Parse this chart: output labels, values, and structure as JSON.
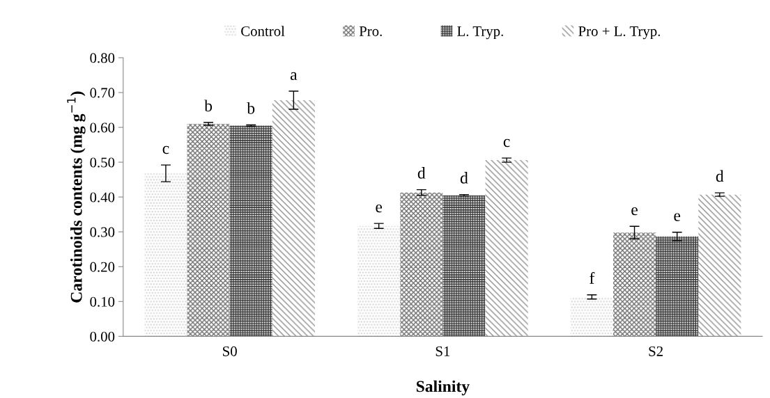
{
  "chart_data": {
    "type": "bar",
    "xlabel": "Salinity",
    "ylabel": "Carotinoids contents (mg g$^{−1}$)",
    "categories": [
      "S0",
      "S1",
      "S2"
    ],
    "series": [
      {
        "name": "Control",
        "color": "#d0d0d0",
        "values": [
          0.468,
          0.317,
          0.113
        ],
        "errors": [
          0.024,
          0.007,
          0.006
        ]
      },
      {
        "name": "Pro.",
        "color": "#707070",
        "values": [
          0.61,
          0.413,
          0.298
        ],
        "errors": [
          0.004,
          0.008,
          0.018
        ]
      },
      {
        "name": "L. Tryp.",
        "color": "#303030",
        "values": [
          0.605,
          0.405,
          0.287
        ],
        "errors": [
          0.002,
          0.002,
          0.012
        ]
      },
      {
        "name": "Pro + L. Tryp.",
        "color": "#909090",
        "values": [
          0.678,
          0.506,
          0.407
        ],
        "errors": [
          0.026,
          0.006,
          0.005
        ]
      }
    ],
    "annotations": [
      "c",
      "b",
      "b",
      "a",
      "e",
      "d",
      "d",
      "c",
      "f",
      "e",
      "e",
      "d"
    ],
    "ylim": [
      0,
      0.8
    ],
    "yticks": [
      {
        "value": 0,
        "label": "0.00"
      },
      {
        "value": 0.1,
        "label": "0.10"
      },
      {
        "value": 0.2,
        "label": "0.20"
      },
      {
        "value": 0.3,
        "label": "0.30"
      },
      {
        "value": 0.4,
        "label": "0.40"
      },
      {
        "value": 0.5,
        "label": "0.50"
      },
      {
        "value": 0.6,
        "label": "0.60"
      },
      {
        "value": 0.7,
        "label": "0.70"
      },
      {
        "value": 0.8,
        "label": "0.80"
      }
    ],
    "grid": false,
    "legend": "top"
  }
}
